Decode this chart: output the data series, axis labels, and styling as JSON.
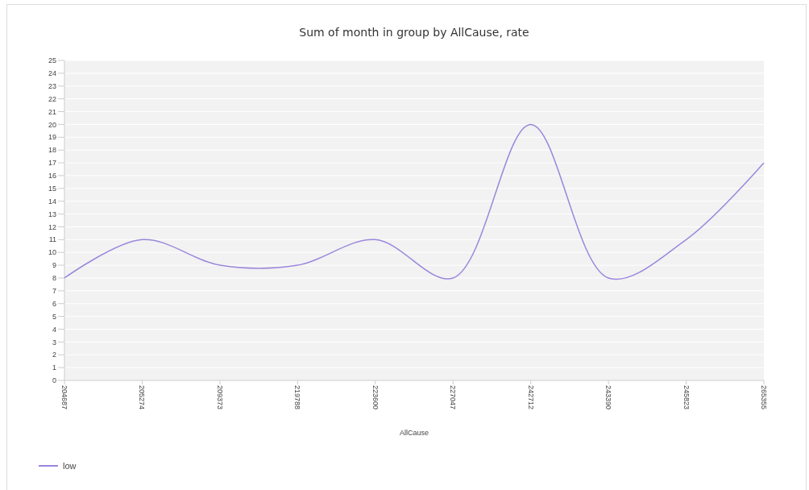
{
  "chart_data": {
    "type": "line",
    "title": "Sum of month in group by AllCause, rate",
    "xlabel": "AllCause",
    "categories": [
      "204687",
      "205274",
      "209373",
      "219788",
      "223600",
      "227047",
      "242712",
      "243390",
      "245823",
      "265355"
    ],
    "series": [
      {
        "name": "low",
        "color": "#9b87dc",
        "values": [
          8,
          11,
          9,
          9,
          11,
          8,
          20,
          8,
          11,
          17
        ]
      }
    ],
    "ylim": [
      0,
      25
    ],
    "yticks": [
      0,
      1,
      2,
      3,
      4,
      5,
      6,
      7,
      8,
      9,
      10,
      11,
      12,
      13,
      14,
      15,
      16,
      17,
      18,
      19,
      20,
      21,
      22,
      23,
      24,
      25
    ],
    "grid": "y",
    "legend": "bottom left",
    "marker": "none",
    "line_style": "solid"
  }
}
